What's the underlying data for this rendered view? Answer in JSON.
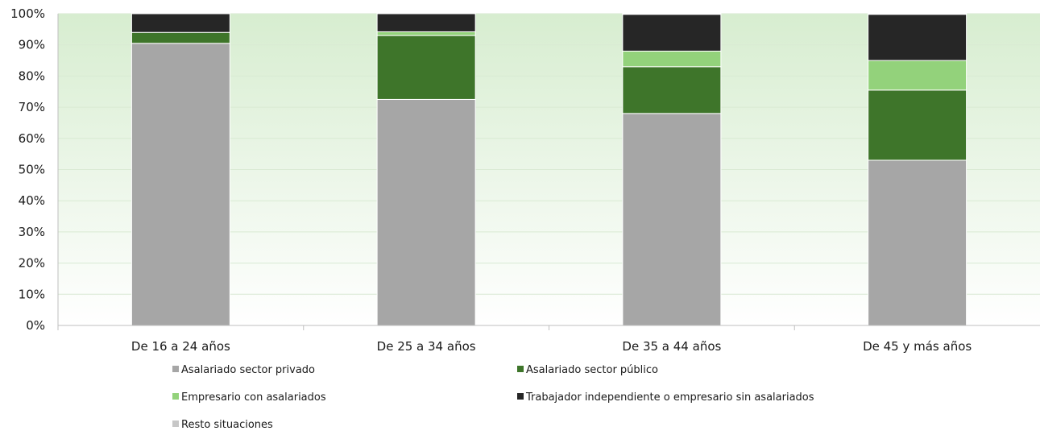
{
  "chart_data": {
    "type": "bar",
    "stacked": true,
    "title": "",
    "xlabel": "",
    "ylabel": "",
    "ylim": [
      0,
      100
    ],
    "y_ticks": [
      "0%",
      "10%",
      "20%",
      "30%",
      "40%",
      "50%",
      "60%",
      "70%",
      "80%",
      "90%",
      "100%"
    ],
    "grid": true,
    "legend_position": "bottom",
    "categories": [
      "De 16 a 24 años",
      "De 25 a 34 años",
      "De 35 a 44 años",
      "De 45 y más años"
    ],
    "series": [
      {
        "name": "Asalariado sector privado",
        "color": "#a6a6a6",
        "values": [
          90.5,
          72.5,
          68.0,
          53.0
        ]
      },
      {
        "name": "Asalariado sector público",
        "color": "#3e752a",
        "values": [
          3.5,
          20.5,
          15.0,
          22.5
        ]
      },
      {
        "name": "Empresario con asalariados",
        "color": "#93d27b",
        "values": [
          0.0,
          1.2,
          5.0,
          9.5
        ]
      },
      {
        "name": "Trabajador independiente o empresario sin asalariados",
        "color": "#262626",
        "values": [
          6.0,
          5.8,
          11.8,
          14.8
        ]
      },
      {
        "name": "Resto situaciones",
        "color": "#c7c7c7",
        "values": [
          0.0,
          0.0,
          0.2,
          0.2
        ]
      }
    ]
  }
}
